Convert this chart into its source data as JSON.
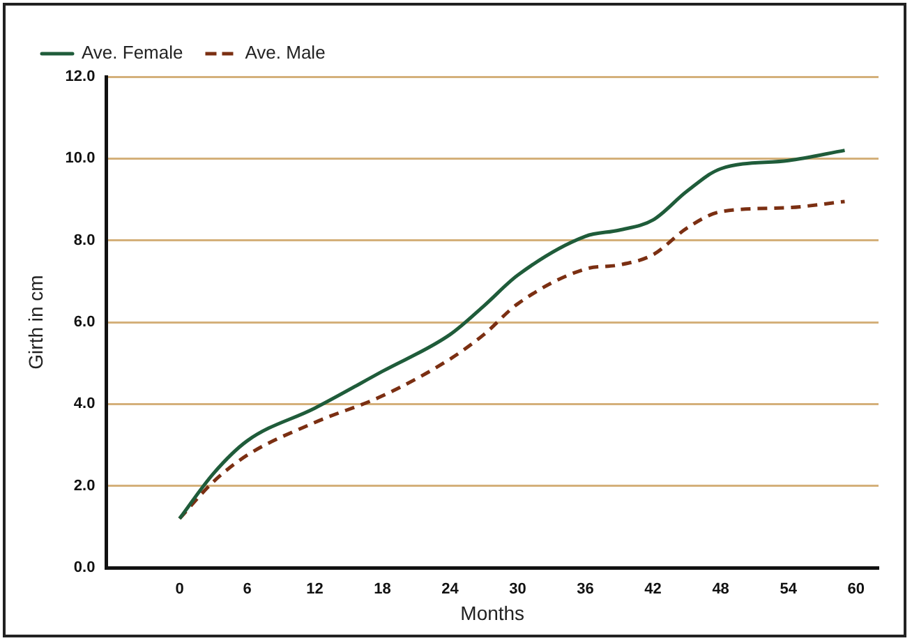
{
  "chart_data": {
    "type": "line",
    "xlabel": "Months",
    "ylabel": "Girth in cm",
    "xlim": [
      -6.5,
      62
    ],
    "xticks": [
      0,
      6,
      12,
      18,
      24,
      30,
      36,
      42,
      48,
      54,
      60
    ],
    "ylim": [
      0,
      12
    ],
    "yticks": [
      {
        "value": 0,
        "label": "0.0"
      },
      {
        "value": 2,
        "label": "2.0"
      },
      {
        "value": 4,
        "label": "4.0"
      },
      {
        "value": 6,
        "label": "6.0"
      },
      {
        "value": 8,
        "label": "8.0"
      },
      {
        "value": 10,
        "label": "10.0"
      },
      {
        "value": 12,
        "label": "12.0"
      }
    ],
    "grid": "y",
    "legend": "top left",
    "marker": "none",
    "series": [
      {
        "name": "Ave. Female",
        "color": "#1f5c3a",
        "line_style": "solid",
        "x": [
          0,
          3,
          6,
          12,
          18,
          24,
          27,
          30,
          36,
          39,
          42,
          45,
          48,
          54,
          59
        ],
        "values": [
          1.2,
          2.3,
          3.1,
          3.9,
          4.8,
          5.7,
          6.4,
          7.15,
          8.1,
          8.25,
          8.5,
          9.2,
          9.75,
          9.95,
          10.2
        ]
      },
      {
        "name": "Ave. Male",
        "color": "#7b2f12",
        "line_style": "dashed",
        "x": [
          0,
          3,
          6,
          12,
          18,
          24,
          27,
          30,
          36,
          39,
          42,
          45,
          48,
          54,
          59
        ],
        "values": [
          1.2,
          2.1,
          2.75,
          3.55,
          4.2,
          5.1,
          5.7,
          6.45,
          7.3,
          7.4,
          7.65,
          8.3,
          8.7,
          8.8,
          8.95
        ]
      }
    ]
  }
}
